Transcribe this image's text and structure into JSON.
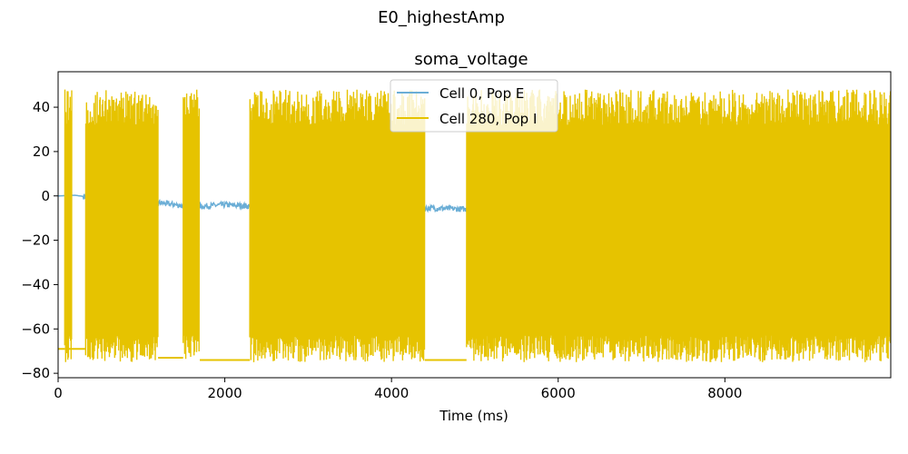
{
  "figure": {
    "suptitle": "E0_highestAmp"
  },
  "chart_data": {
    "type": "line",
    "title": "soma_voltage",
    "xlabel": "Time (ms)",
    "ylabel": "",
    "xlim": [
      0,
      9990
    ],
    "ylim": [
      -82,
      56
    ],
    "x_ticks": [
      "0",
      "2000",
      "4000",
      "6000",
      "8000"
    ],
    "y_ticks": [
      "40",
      "20",
      "0",
      "−20",
      "−40",
      "−60",
      "−80"
    ],
    "x_tick_values": [
      0,
      2000,
      4000,
      6000,
      8000
    ],
    "y_tick_values": [
      40,
      20,
      0,
      -20,
      -40,
      -60,
      -80
    ],
    "legend_placement": "upper center",
    "grid": false,
    "series": [
      {
        "name": "Cell 0, Pop E",
        "color": "#6baed6",
        "baseline_points": [
          [
            0,
            0
          ],
          [
            200,
            0.3
          ],
          [
            300,
            -0.2
          ],
          [
            700,
            -1.5
          ],
          [
            1000,
            -2.2
          ],
          [
            1300,
            -3.5
          ],
          [
            1600,
            -5
          ],
          [
            2000,
            -4
          ],
          [
            2500,
            -5
          ],
          [
            3000,
            -5.5
          ],
          [
            3500,
            -6
          ],
          [
            4000,
            -6.5
          ],
          [
            4500,
            -5.5
          ],
          [
            4900,
            -6
          ],
          [
            5300,
            -6
          ],
          [
            5800,
            -6
          ],
          [
            6500,
            -6
          ],
          [
            7000,
            -6
          ],
          [
            7500,
            -6
          ],
          [
            8000,
            -5.5
          ],
          [
            8500,
            -5
          ],
          [
            9000,
            -5
          ],
          [
            9990,
            -5
          ]
        ]
      },
      {
        "name": "Cell 280, Pop I",
        "color": "#e6c300",
        "rest_segments": [
          [
            0,
            80,
            -69
          ],
          [
            80,
            330,
            -69
          ],
          [
            1200,
            1500,
            -73
          ],
          [
            1700,
            2300,
            -74
          ],
          [
            4400,
            4900,
            -74
          ]
        ],
        "spike_peak": 48,
        "spike_trough": -75,
        "burst_intervals": [
          [
            80,
            170
          ],
          [
            330,
            1200
          ],
          [
            1500,
            1700
          ],
          [
            2300,
            4400
          ],
          [
            4900,
            9990
          ]
        ]
      }
    ]
  }
}
